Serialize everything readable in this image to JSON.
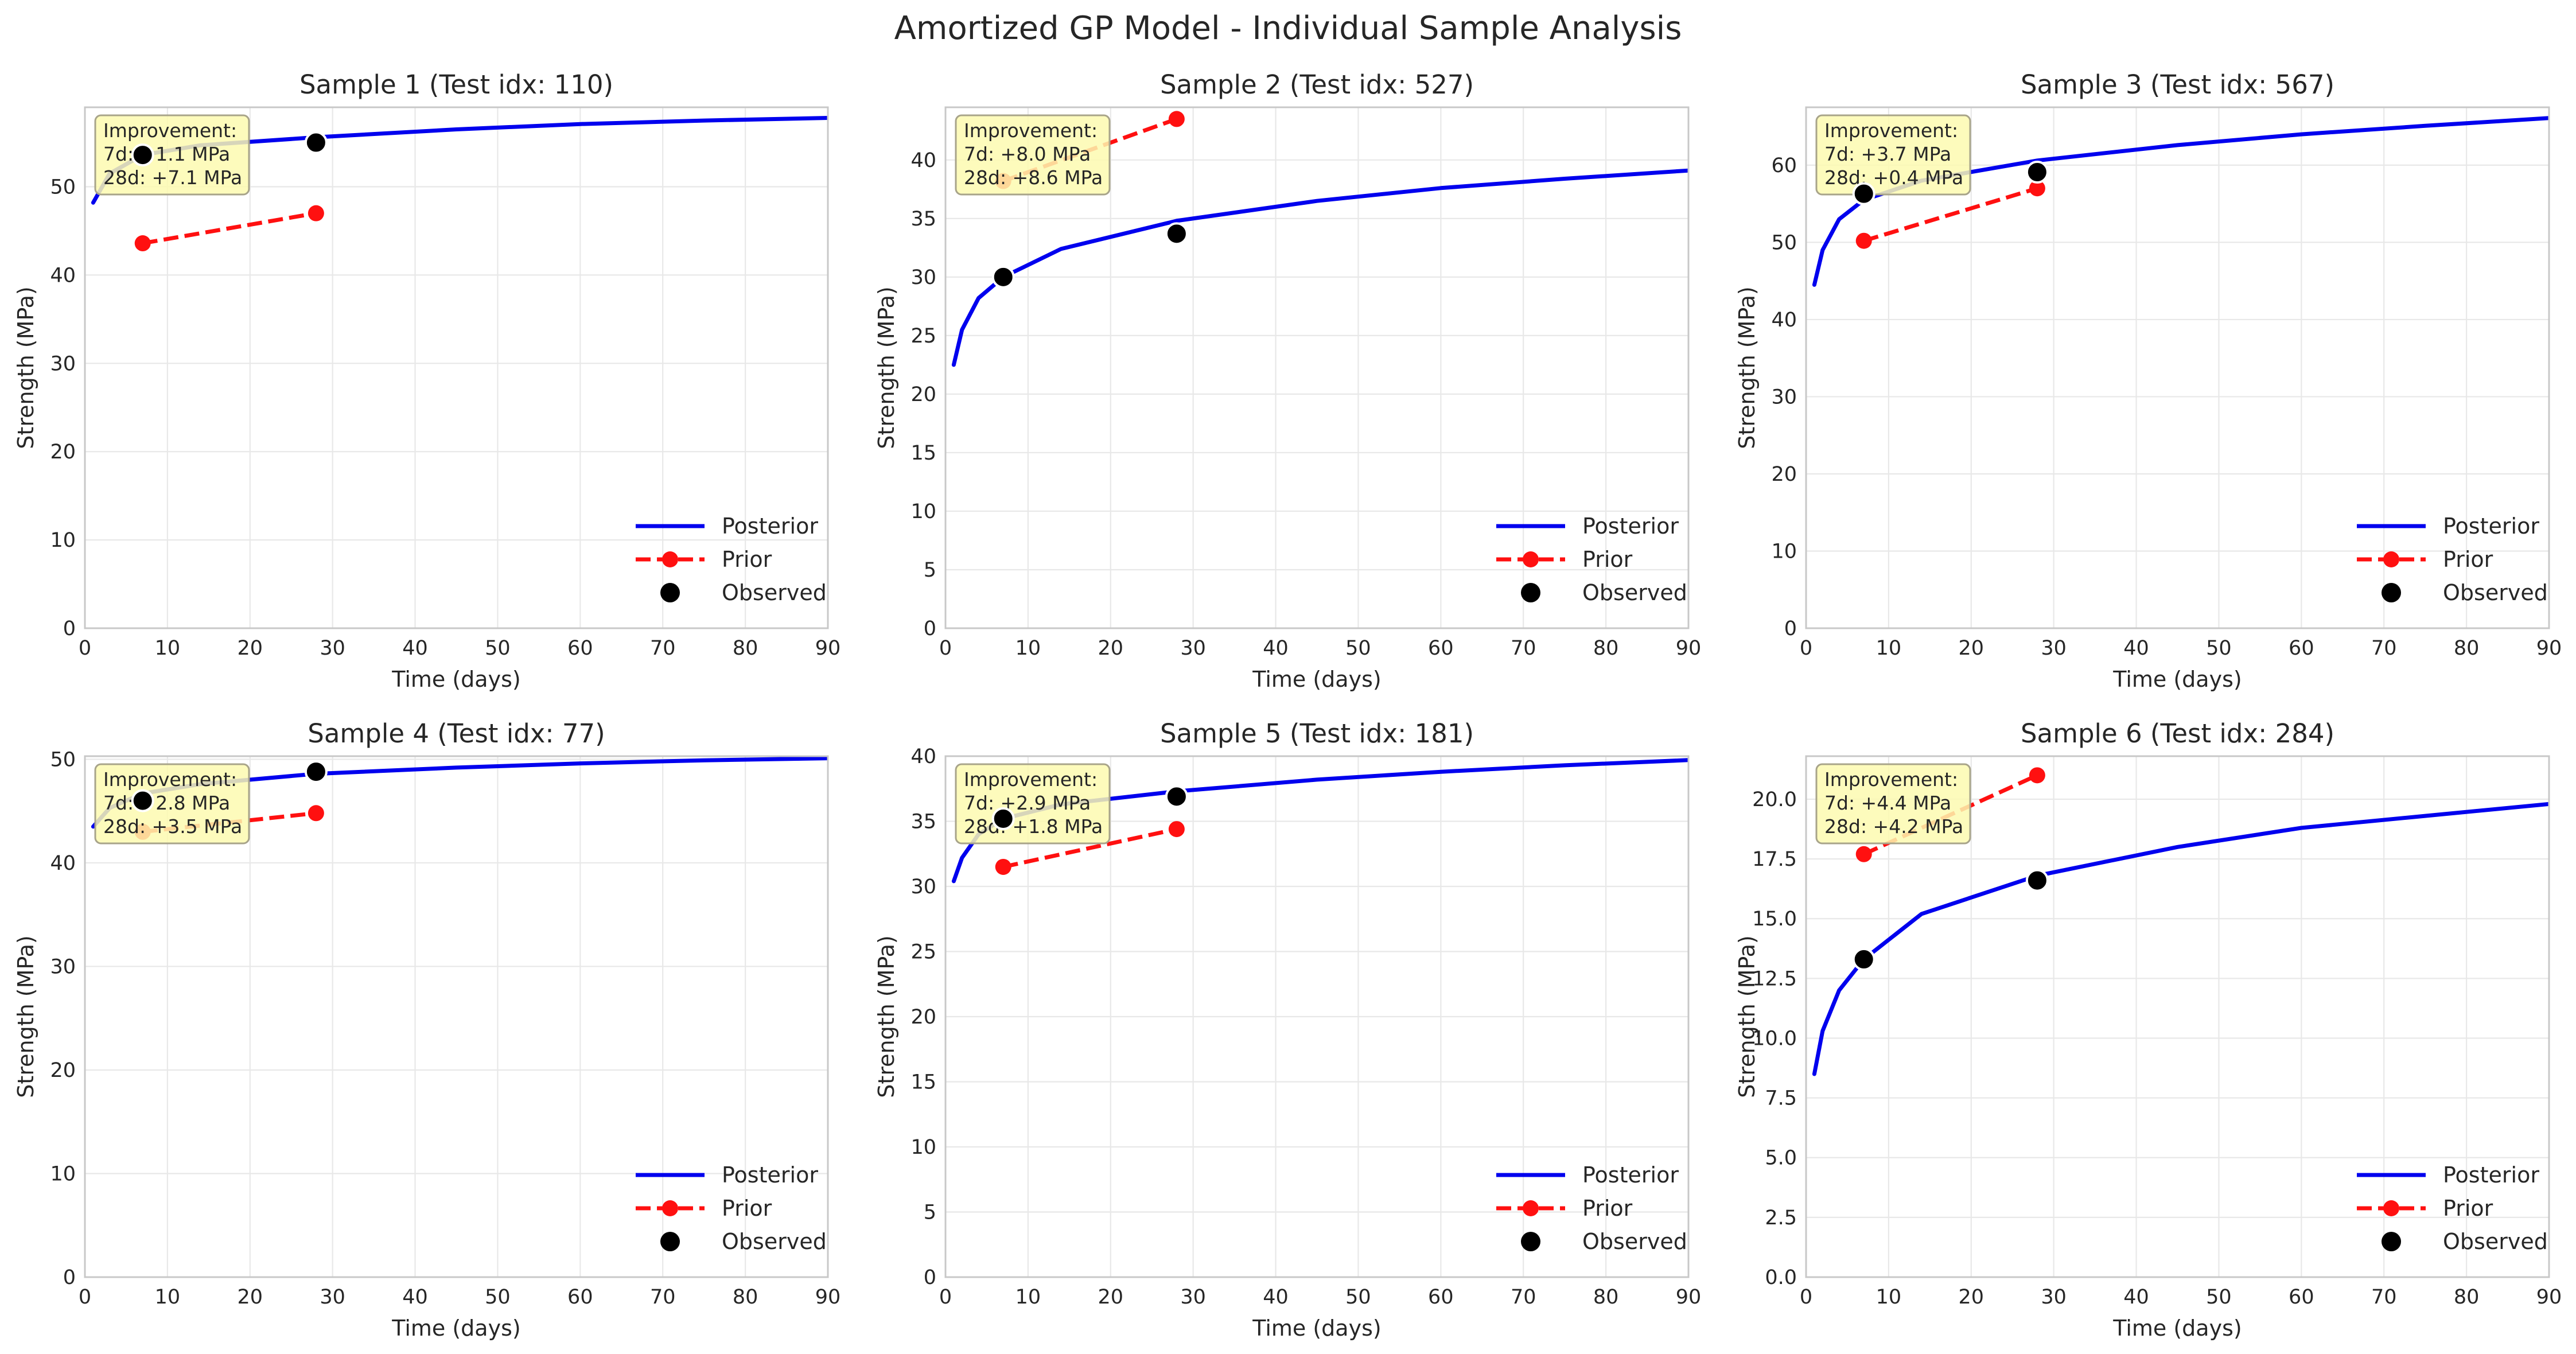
{
  "figure": {
    "title": "Amortized GP Model - Individual Sample Analysis"
  },
  "colors": {
    "posterior": "#0000ee",
    "prior": "#ff1010",
    "observed": "#000000",
    "annotation_bg": "#fdfab0",
    "annotation_border": "#a8a48a",
    "grid": "#e8e8e8",
    "axes_edge": "#c8c8c8"
  },
  "chart_data": [
    {
      "type": "line",
      "title": "Sample 1 (Test idx: 110)",
      "xlabel": "Time (days)",
      "ylabel": "Strength (MPa)",
      "xlim": [
        0,
        90
      ],
      "ylim": [
        0,
        59
      ],
      "xticks": [
        0,
        10,
        20,
        30,
        40,
        50,
        60,
        70,
        80,
        90
      ],
      "yticks": [
        0,
        10,
        20,
        30,
        40,
        50
      ],
      "grid": true,
      "legend_position": "lower-right",
      "legend": [
        "Posterior",
        "Prior",
        "Observed"
      ],
      "annotation": [
        "Improvement:",
        "7d: +1.1 MPa",
        "28d: +7.1 MPa"
      ],
      "posterior": {
        "x": [
          1,
          3,
          7,
          14,
          28,
          45,
          60,
          75,
          90
        ],
        "y": [
          48.2,
          51.5,
          53.6,
          54.7,
          55.6,
          56.5,
          57.1,
          57.5,
          57.8
        ]
      },
      "prior": {
        "x": [
          7,
          28
        ],
        "y": [
          43.6,
          47.0
        ]
      },
      "observed": {
        "x": [
          7,
          28
        ],
        "y": [
          53.6,
          55.0
        ]
      }
    },
    {
      "type": "line",
      "title": "Sample 2 (Test idx: 527)",
      "xlabel": "Time (days)",
      "ylabel": "Strength (MPa)",
      "xlim": [
        0,
        90
      ],
      "ylim": [
        0,
        44.5
      ],
      "xticks": [
        0,
        10,
        20,
        30,
        40,
        50,
        60,
        70,
        80,
        90
      ],
      "yticks": [
        0,
        5,
        10,
        15,
        20,
        25,
        30,
        35,
        40
      ],
      "grid": true,
      "legend_position": "lower-right",
      "legend": [
        "Posterior",
        "Prior",
        "Observed"
      ],
      "annotation": [
        "Improvement:",
        "7d: +8.0 MPa",
        "28d: +8.6 MPa"
      ],
      "posterior": {
        "x": [
          1,
          2,
          4,
          7,
          14,
          28,
          45,
          60,
          75,
          90
        ],
        "y": [
          22.5,
          25.5,
          28.2,
          30.0,
          32.4,
          34.8,
          36.5,
          37.6,
          38.4,
          39.1
        ]
      },
      "prior": {
        "x": [
          7,
          28
        ],
        "y": [
          38.2,
          43.5
        ]
      },
      "observed": {
        "x": [
          7,
          28
        ],
        "y": [
          30.0,
          33.7
        ]
      }
    },
    {
      "type": "line",
      "title": "Sample 3 (Test idx: 567)",
      "xlabel": "Time (days)",
      "ylabel": "Strength (MPa)",
      "xlim": [
        0,
        90
      ],
      "ylim": [
        0,
        67.5
      ],
      "xticks": [
        0,
        10,
        20,
        30,
        40,
        50,
        60,
        70,
        80,
        90
      ],
      "yticks": [
        0,
        10,
        20,
        30,
        40,
        50,
        60
      ],
      "grid": true,
      "legend_position": "lower-right",
      "legend": [
        "Posterior",
        "Prior",
        "Observed"
      ],
      "annotation": [
        "Improvement:",
        "7d: +3.7 MPa",
        "28d: +0.4 MPa"
      ],
      "posterior": {
        "x": [
          1,
          2,
          4,
          7,
          14,
          28,
          45,
          60,
          75,
          90
        ],
        "y": [
          44.5,
          49.0,
          53.0,
          55.5,
          58.0,
          60.6,
          62.6,
          64.0,
          65.1,
          66.1
        ]
      },
      "prior": {
        "x": [
          7,
          28
        ],
        "y": [
          50.2,
          57.0
        ]
      },
      "observed": {
        "x": [
          7,
          28
        ],
        "y": [
          56.3,
          59.1
        ]
      }
    },
    {
      "type": "line",
      "title": "Sample 4 (Test idx: 77)",
      "xlabel": "Time (days)",
      "ylabel": "Strength (MPa)",
      "xlim": [
        0,
        90
      ],
      "ylim": [
        0,
        50.3
      ],
      "xticks": [
        0,
        10,
        20,
        30,
        40,
        50,
        60,
        70,
        80,
        90
      ],
      "yticks": [
        0,
        10,
        20,
        30,
        40,
        50
      ],
      "grid": true,
      "legend_position": "lower-right",
      "legend": [
        "Posterior",
        "Prior",
        "Observed"
      ],
      "annotation": [
        "Improvement:",
        "7d: +2.8 MPa",
        "28d: +3.5 MPa"
      ],
      "posterior": {
        "x": [
          1,
          3,
          7,
          14,
          28,
          45,
          60,
          75,
          90
        ],
        "y": [
          43.5,
          45.3,
          46.7,
          47.6,
          48.6,
          49.2,
          49.6,
          49.9,
          50.1
        ]
      },
      "prior": {
        "x": [
          7,
          28
        ],
        "y": [
          43.0,
          44.8
        ]
      },
      "observed": {
        "x": [
          7,
          28
        ],
        "y": [
          46.0,
          48.8
        ]
      }
    },
    {
      "type": "line",
      "title": "Sample 5 (Test idx: 181)",
      "xlabel": "Time (days)",
      "ylabel": "Strength (MPa)",
      "xlim": [
        0,
        90
      ],
      "ylim": [
        0,
        40
      ],
      "xticks": [
        0,
        10,
        20,
        30,
        40,
        50,
        60,
        70,
        80,
        90
      ],
      "yticks": [
        0,
        5,
        10,
        15,
        20,
        25,
        30,
        35,
        40
      ],
      "grid": true,
      "legend_position": "lower-right",
      "legend": [
        "Posterior",
        "Prior",
        "Observed"
      ],
      "annotation": [
        "Improvement:",
        "7d: +2.9 MPa",
        "28d: +1.8 MPa"
      ],
      "posterior": {
        "x": [
          1,
          2,
          4,
          7,
          14,
          28,
          45,
          60,
          75,
          90
        ],
        "y": [
          30.4,
          32.2,
          34.0,
          35.2,
          36.3,
          37.3,
          38.2,
          38.8,
          39.3,
          39.7
        ]
      },
      "prior": {
        "x": [
          7,
          28
        ],
        "y": [
          31.5,
          34.4
        ]
      },
      "observed": {
        "x": [
          7,
          28
        ],
        "y": [
          35.2,
          36.9
        ]
      }
    },
    {
      "type": "line",
      "title": "Sample 6 (Test idx: 284)",
      "xlabel": "Time (days)",
      "ylabel": "Strength (MPa)",
      "xlim": [
        0,
        90
      ],
      "ylim": [
        0,
        21.8
      ],
      "xticks": [
        0,
        10,
        20,
        30,
        40,
        50,
        60,
        70,
        80,
        90
      ],
      "yticks": [
        0.0,
        2.5,
        5.0,
        7.5,
        10.0,
        12.5,
        15.0,
        17.5,
        20.0
      ],
      "ytick_labels": [
        "0.0",
        "2.5",
        "5.0",
        "7.5",
        "10.0",
        "12.5",
        "15.0",
        "17.5",
        "20.0"
      ],
      "grid": true,
      "legend_position": "lower-right",
      "legend": [
        "Posterior",
        "Prior",
        "Observed"
      ],
      "annotation": [
        "Improvement:",
        "7d: +4.4 MPa",
        "28d: +4.2 MPa"
      ],
      "posterior": {
        "x": [
          1,
          2,
          4,
          7,
          14,
          28,
          45,
          60,
          75,
          90
        ],
        "y": [
          8.5,
          10.3,
          12.0,
          13.3,
          15.2,
          16.8,
          18.0,
          18.8,
          19.3,
          19.8
        ]
      },
      "prior": {
        "x": [
          7,
          28
        ],
        "y": [
          17.7,
          21.0
        ]
      },
      "observed": {
        "x": [
          7,
          28
        ],
        "y": [
          13.3,
          16.6
        ]
      }
    }
  ]
}
